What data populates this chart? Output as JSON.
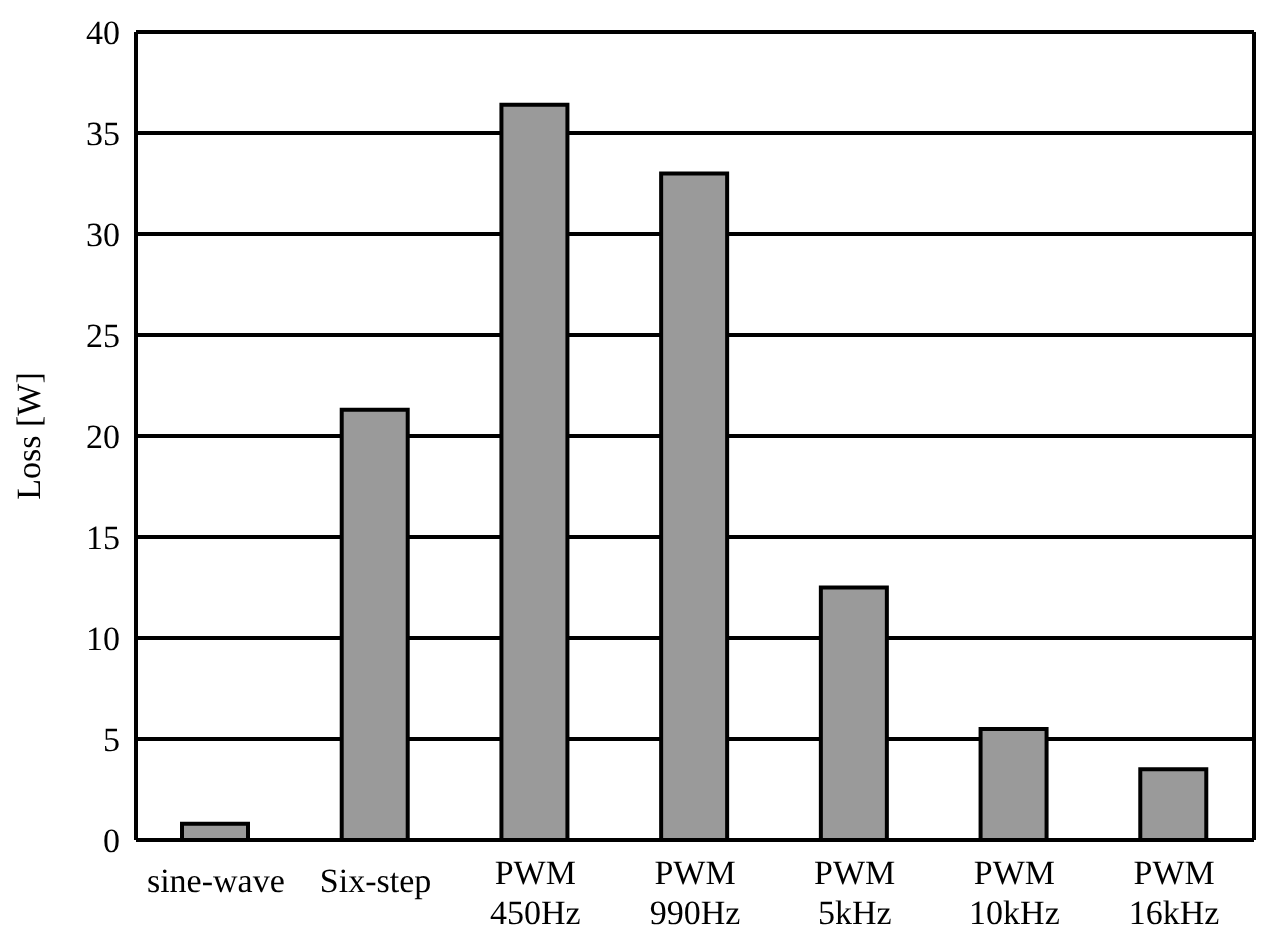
{
  "chart_data": {
    "type": "bar",
    "ylabel": "Loss [W]",
    "categories": [
      "sine-wave",
      "Six-step",
      "PWM\n450Hz",
      "PWM\n990Hz",
      "PWM\n5kHz",
      "PWM\n10kHz",
      "PWM\n16kHz"
    ],
    "values": [
      0.8,
      21.3,
      36.4,
      33.0,
      12.5,
      5.5,
      3.5
    ],
    "color": "#9a9a9a",
    "ylim": [
      0,
      40
    ],
    "yticks": [
      0,
      5,
      10,
      15,
      20,
      25,
      30,
      35,
      40
    ],
    "grid": "y"
  }
}
